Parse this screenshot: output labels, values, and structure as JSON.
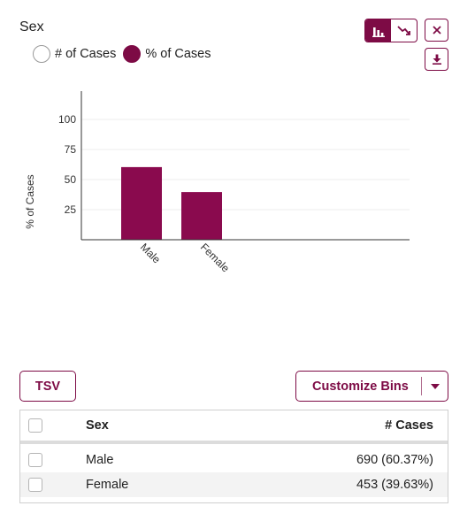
{
  "title": "Sex",
  "radio": {
    "options": [
      {
        "label": "# of Cases",
        "checked": false
      },
      {
        "label": "% of Cases",
        "checked": true
      }
    ]
  },
  "toolbar": {
    "chart_type_options": [
      "bar-chart-icon",
      "line-chart-icon"
    ],
    "active_chart_type": "bar-chart-icon",
    "close_icon": "close-icon",
    "download_icon": "download-icon"
  },
  "colors": {
    "accent": "#7d0b45",
    "bar": "#8a0a4e",
    "row_alt": "#f3f3f3"
  },
  "chart_data": {
    "type": "bar",
    "categories": [
      "Male",
      "Female"
    ],
    "values": [
      60.37,
      39.63
    ],
    "ylabel": "% of Cases",
    "xlabel": "",
    "yticks": [
      25,
      50,
      75,
      100
    ],
    "ylim": [
      0,
      100
    ],
    "grid": true
  },
  "buttons": {
    "tsv": "TSV",
    "customize": "Customize Bins"
  },
  "table": {
    "headers": {
      "name": "Sex",
      "cases": "# Cases"
    },
    "rows": [
      {
        "name": "Male",
        "cases": "690 (60.37%)"
      },
      {
        "name": "Female",
        "cases": "453 (39.63%)"
      }
    ]
  }
}
